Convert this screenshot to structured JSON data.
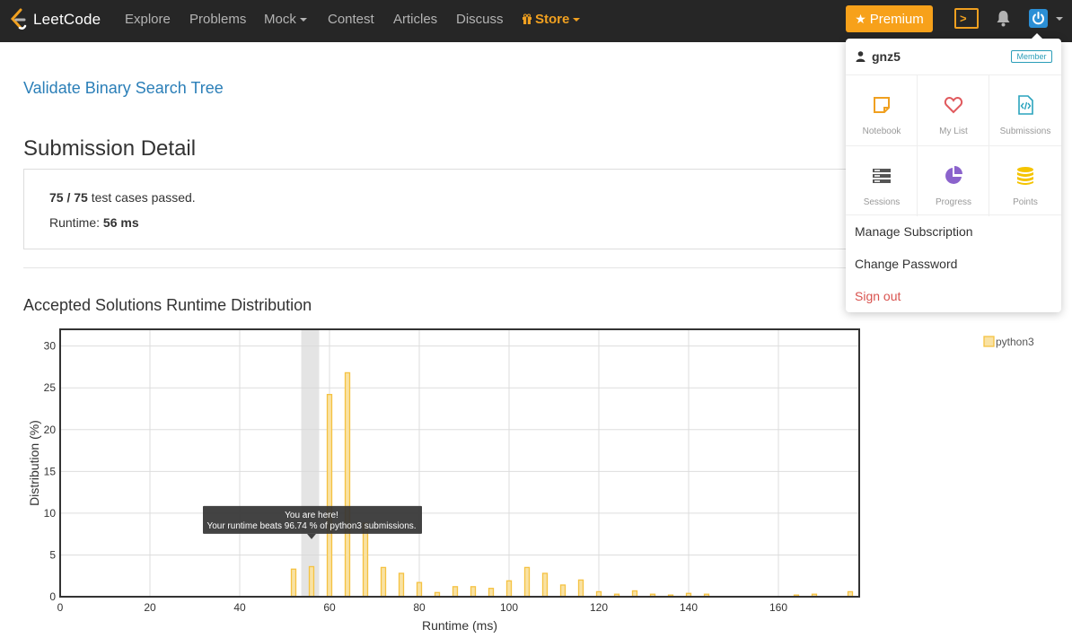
{
  "navbar": {
    "brand": "LeetCode",
    "items": [
      "Explore",
      "Problems",
      "Mock",
      "Contest",
      "Articles",
      "Discuss"
    ],
    "store": "Store",
    "premium": "Premium",
    "colors": {
      "background": "#262626",
      "accent": "#f7a11a",
      "avatar": "#2b8fd6"
    },
    "icons": [
      "leetcode-logo-icon",
      "gift-icon",
      "star-icon",
      "console-icon",
      "bell-icon",
      "power-icon"
    ]
  },
  "main": {
    "problem_title": "Validate Binary Search Tree",
    "section_title": "Submission Detail",
    "passed": "75 / 75",
    "passed_suffix": "test cases passed.",
    "runtime_label": "Runtime:",
    "runtime_value": "56 ms",
    "chart_title": "Accepted Solutions Runtime Distribution"
  },
  "dropdown": {
    "username": "gnz5",
    "badge": "Member",
    "grid": [
      {
        "label": "Notebook",
        "icon": "notebook-icon",
        "color": "#f0a020"
      },
      {
        "label": "My List",
        "icon": "heart-icon",
        "color": "#e0595d"
      },
      {
        "label": "Submissions",
        "icon": "code-file-icon",
        "color": "#2aa3bd"
      },
      {
        "label": "Sessions",
        "icon": "sessions-icon",
        "color": "#555555"
      },
      {
        "label": "Progress",
        "icon": "pie-icon",
        "color": "#8b63cc"
      },
      {
        "label": "Points",
        "icon": "coins-icon",
        "color": "#f5c400"
      }
    ],
    "manage": "Manage Subscription",
    "change_password": "Change Password",
    "sign_out": "Sign out"
  },
  "chart_data": {
    "type": "bar",
    "xlabel": "Runtime (ms)",
    "ylabel": "Distribution (%)",
    "xlim": [
      0,
      178
    ],
    "ylim": [
      0,
      32
    ],
    "xticks": [
      0,
      20,
      40,
      60,
      80,
      100,
      120,
      140,
      160
    ],
    "yticks": [
      0,
      5,
      10,
      15,
      20,
      25,
      30
    ],
    "grid": true,
    "legend_position": "right",
    "series": [
      {
        "name": "python3",
        "color": "#f5c242",
        "x": [
          52,
          56,
          60,
          64,
          68,
          72,
          76,
          80,
          84,
          88,
          92,
          96,
          100,
          104,
          108,
          112,
          116,
          120,
          124,
          128,
          132,
          136,
          140,
          144,
          164,
          168,
          176
        ],
        "values": [
          3.3,
          3.6,
          24.2,
          26.8,
          8.8,
          3.5,
          2.8,
          1.7,
          0.5,
          1.2,
          1.2,
          1.0,
          1.9,
          3.5,
          2.8,
          1.4,
          2.0,
          0.6,
          0.3,
          0.7,
          0.3,
          0.2,
          0.4,
          0.3,
          0.2,
          0.3,
          0.6
        ]
      }
    ],
    "highlight_x": 56,
    "tooltip": {
      "title": "You are here!",
      "text": "Your runtime beats 96.74 % of python3 submissions."
    }
  }
}
